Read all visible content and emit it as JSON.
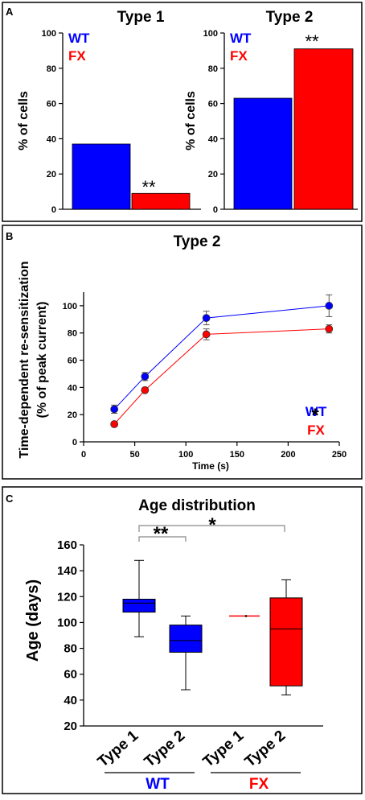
{
  "panels": {
    "a": "A",
    "b": "B",
    "c": "C"
  },
  "colors": {
    "wt": "#0000ff",
    "fx": "#ff0000",
    "axis": "#000000"
  },
  "chart_data": [
    {
      "type": "bar",
      "panel": "A",
      "title": "Type 1",
      "ylabel": "% of cells",
      "categories": [
        "WT",
        "FX"
      ],
      "values": [
        37,
        9
      ],
      "ylim": [
        0,
        100
      ],
      "yticks": [
        "0",
        "20",
        "40",
        "60",
        "80",
        "100"
      ],
      "legend": [
        "WT",
        "FX"
      ],
      "annotation": "**"
    },
    {
      "type": "bar",
      "panel": "A",
      "title": "Type 2",
      "ylabel": "% of cells",
      "categories": [
        "WT",
        "FX"
      ],
      "values": [
        63,
        91
      ],
      "ylim": [
        0,
        100
      ],
      "yticks": [
        "0",
        "20",
        "40",
        "60",
        "80",
        "100"
      ],
      "legend": [
        "WT",
        "FX"
      ],
      "annotation": "**"
    },
    {
      "type": "line",
      "panel": "B",
      "title": "Type 2",
      "xlabel": "Time (s)",
      "ylabel_line1": "Time-dependent re-sensitization",
      "ylabel_line2": "(% of peak current)",
      "xlim": [
        0,
        250
      ],
      "ylim": [
        0,
        110
      ],
      "xticks": [
        "0",
        "50",
        "100",
        "150",
        "200",
        "250"
      ],
      "yticks": [
        "0",
        "20",
        "40",
        "60",
        "80",
        "100"
      ],
      "x": [
        30,
        60,
        120,
        240
      ],
      "series": [
        {
          "name": "WT",
          "values": [
            24,
            48,
            91,
            100
          ],
          "errors": [
            3,
            3,
            5,
            8
          ]
        },
        {
          "name": "FX",
          "values": [
            13,
            38,
            79,
            83
          ],
          "errors": [
            1,
            1,
            4,
            3
          ]
        }
      ],
      "annotation": "*"
    },
    {
      "type": "box",
      "panel": "C",
      "title": "Age distribution",
      "ylabel": "Age (days)",
      "ylim": [
        20,
        160
      ],
      "yticks": [
        "20",
        "40",
        "60",
        "80",
        "100",
        "120",
        "140",
        "160"
      ],
      "categories": [
        "Type 1",
        "Type 2",
        "Type 1",
        "Type 2"
      ],
      "groups": [
        "WT",
        "FX"
      ],
      "boxes": [
        {
          "group": "WT",
          "min": 89,
          "q1": 108,
          "median": 115,
          "q3": 118,
          "max": 148
        },
        {
          "group": "WT",
          "min": 48,
          "q1": 77,
          "median": 86,
          "q3": 98,
          "max": 105
        },
        {
          "group": "FX",
          "min": 105,
          "q1": 105,
          "median": 105,
          "q3": 105,
          "max": 105
        },
        {
          "group": "FX",
          "min": 44,
          "q1": 51,
          "median": 95,
          "q3": 119,
          "max": 133
        }
      ],
      "significance": [
        "**",
        "*"
      ]
    }
  ]
}
